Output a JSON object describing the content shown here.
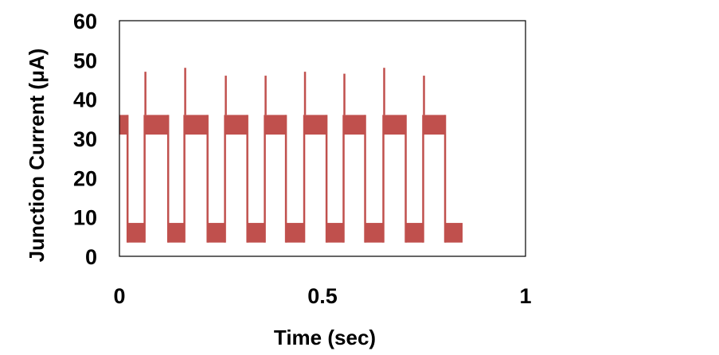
{
  "chart_data": {
    "type": "line",
    "title": "",
    "xlabel": "Time (sec)",
    "ylabel": "Junction Current (μA)",
    "xlim": [
      0,
      1
    ],
    "ylim": [
      0,
      60
    ],
    "x_ticks": [
      "0",
      "0.5",
      "1"
    ],
    "x_tick_values": [
      0,
      0.5,
      1
    ],
    "y_ticks": [
      "0",
      "10",
      "20",
      "30",
      "40",
      "50",
      "60"
    ],
    "y_tick_values": [
      0,
      10,
      20,
      30,
      40,
      50,
      60
    ],
    "grid": false,
    "legend": "none",
    "series": [
      {
        "color": "#c0504d",
        "high_band": [
          31,
          36
        ],
        "low_band": [
          3.5,
          8.5
        ],
        "segments": [
          {
            "start": 0.0,
            "end": 0.02,
            "level": "high"
          },
          {
            "start": 0.02,
            "end": 0.062,
            "level": "low"
          },
          {
            "start": 0.062,
            "end": 0.12,
            "level": "high",
            "spike": 47
          },
          {
            "start": 0.12,
            "end": 0.16,
            "level": "low"
          },
          {
            "start": 0.16,
            "end": 0.217,
            "level": "high",
            "spike": 48
          },
          {
            "start": 0.217,
            "end": 0.26,
            "level": "low"
          },
          {
            "start": 0.26,
            "end": 0.315,
            "level": "high",
            "spike": 46
          },
          {
            "start": 0.315,
            "end": 0.358,
            "level": "low"
          },
          {
            "start": 0.358,
            "end": 0.41,
            "level": "high",
            "spike": 46
          },
          {
            "start": 0.41,
            "end": 0.455,
            "level": "low"
          },
          {
            "start": 0.455,
            "end": 0.51,
            "level": "high",
            "spike": 47
          },
          {
            "start": 0.51,
            "end": 0.552,
            "level": "low"
          },
          {
            "start": 0.552,
            "end": 0.605,
            "level": "high",
            "spike": 46.5
          },
          {
            "start": 0.605,
            "end": 0.65,
            "level": "low"
          },
          {
            "start": 0.65,
            "end": 0.705,
            "level": "high",
            "spike": 48
          },
          {
            "start": 0.705,
            "end": 0.748,
            "level": "low"
          },
          {
            "start": 0.748,
            "end": 0.802,
            "level": "high",
            "spike": 46
          },
          {
            "start": 0.802,
            "end": 0.845,
            "level": "low"
          }
        ]
      }
    ]
  }
}
